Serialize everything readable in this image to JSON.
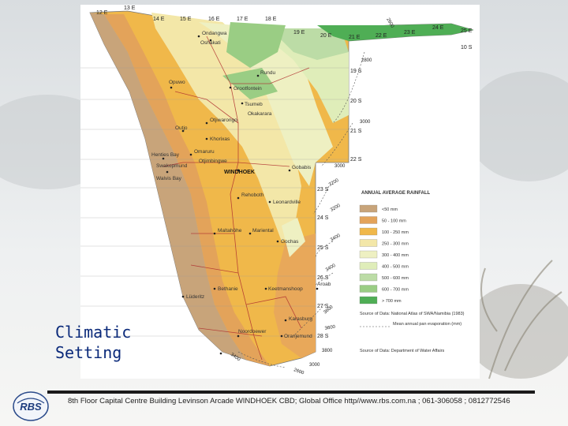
{
  "slide": {
    "title_lines": [
      "Climatic",
      "Setting"
    ],
    "footer": "8th Floor Capital Centre Building Levinson Arcade WINDHOEK CBD; Global Office http//www.rbs.com.na ; 061-306058 ; 0812772546",
    "logo_text": "RBS"
  },
  "map": {
    "capital": "WINDHOEK",
    "longitudes": [
      "12 E",
      "13 E",
      "14 E",
      "15 E",
      "16 E",
      "17 E",
      "18 E",
      "19 E",
      "20 E",
      "21 E",
      "22 E",
      "23 E",
      "24 E",
      "25 E"
    ],
    "latitudes": [
      "10 S",
      "19 S",
      "20 S",
      "21 S",
      "22 S",
      "23 S",
      "24 S",
      "25 S",
      "26 S",
      "27 S",
      "28 S"
    ],
    "isolines": [
      "2600",
      "2800",
      "3000",
      "3000",
      "3200",
      "3200",
      "3400",
      "3400",
      "3600",
      "3600",
      "3800",
      "3400",
      "3000",
      "2600"
    ],
    "legend": {
      "title": "ANNUAL AVERAGE RAINFALL",
      "items": [
        {
          "label": "<50 mm",
          "color": "#c8a47a"
        },
        {
          "label": "50 - 100 mm",
          "color": "#e3a35a"
        },
        {
          "label": "100 - 250 mm",
          "color": "#f0b84a"
        },
        {
          "label": "250 - 300 mm",
          "color": "#f3e7a8"
        },
        {
          "label": "300 - 400 mm",
          "color": "#eef0c2"
        },
        {
          "label": "400 - 500 mm",
          "color": "#dfedb9"
        },
        {
          "label": "500 - 600 mm",
          "color": "#bcdca6"
        },
        {
          "label": "600 - 700 mm",
          "color": "#9acd84"
        },
        {
          "label": "> 700 mm",
          "color": "#4fae55"
        }
      ],
      "source1": "Source of Data: National Atlas of SWA/Namibia (1983)",
      "evap_label": "Mean annual pan evaporation (mm)",
      "source2": "Source of Data: Department of Water Affairs"
    },
    "places": [
      "Ondangwa",
      "Oshakati",
      "Rundu",
      "Opuwo",
      "Grootfontein",
      "Tsumeb",
      "Otjiwarongo",
      "Okakarara",
      "Outjo",
      "Khorixas",
      "Omaruru",
      "Otjimbingwe",
      "Henties Bay",
      "Swakopmund",
      "Walvis Bay",
      "Gobabis",
      "Rehoboth",
      "Leonardville",
      "Maltahöhe",
      "Mariental",
      "Gochas",
      "Bethanie",
      "Keetmanshoop",
      "Aroab",
      "Lüderitz",
      "Karasburg",
      "Noordoewer",
      "Oranjemund"
    ]
  }
}
